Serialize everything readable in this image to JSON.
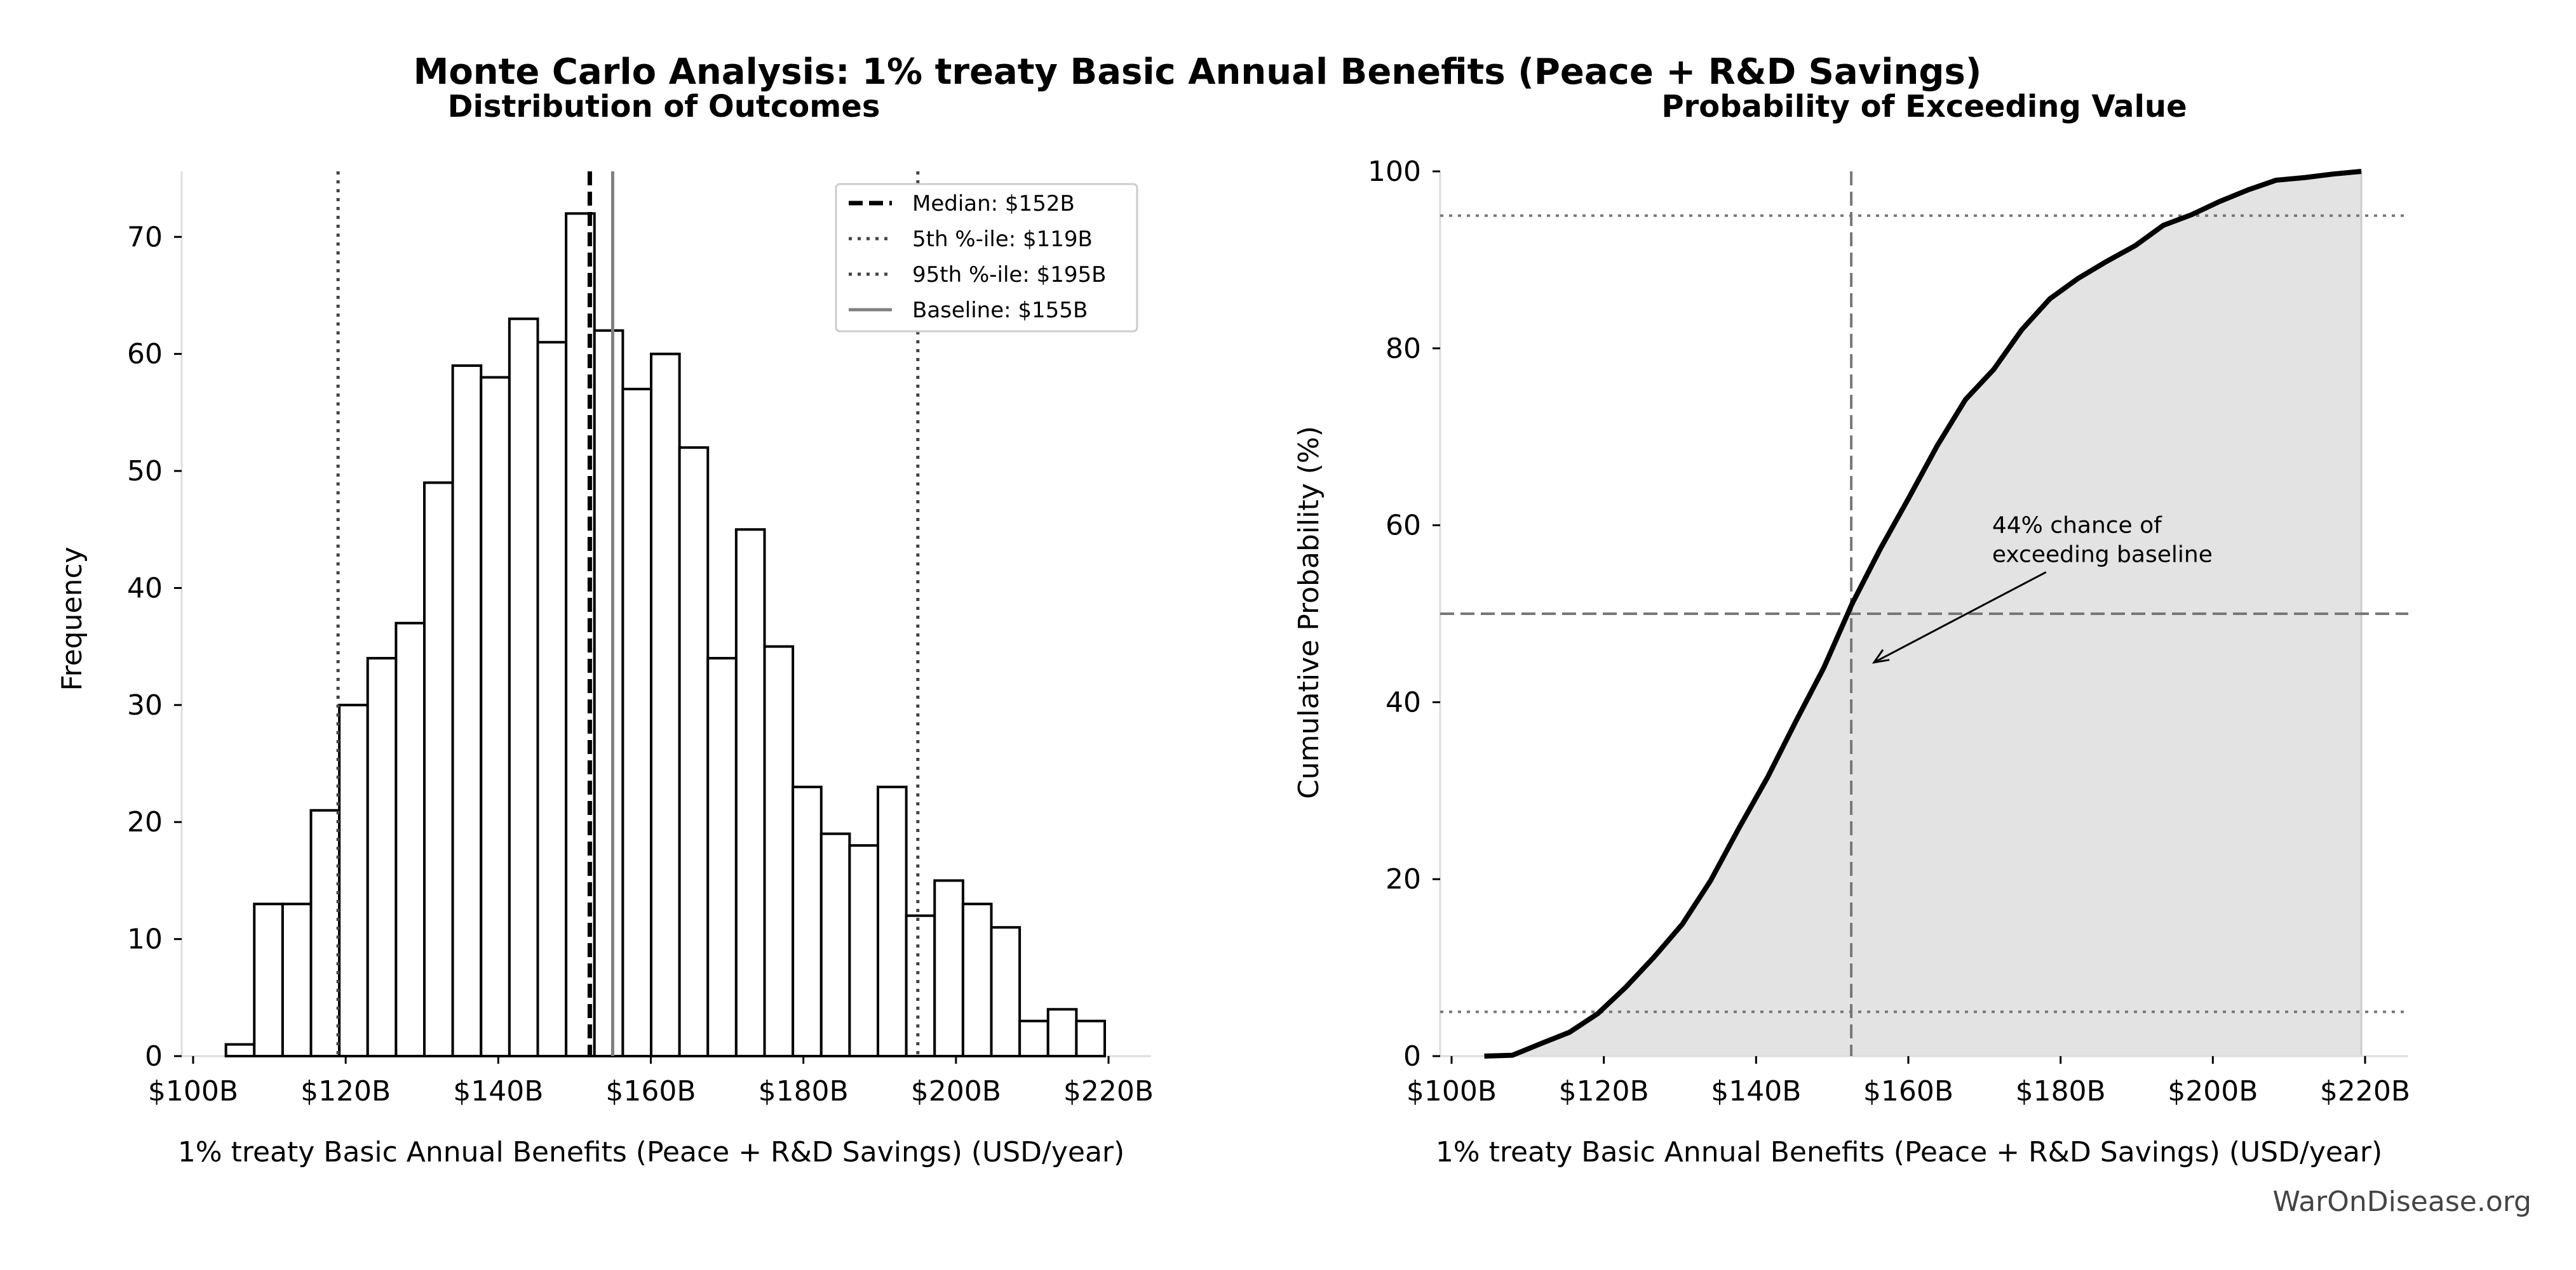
{
  "title": "Monte Carlo Analysis: 1% treaty Basic Annual Benefits (Peace + R&D Savings)",
  "watermark": "WarOnDisease.org",
  "chart_data": [
    {
      "type": "bar",
      "title": "Distribution of Outcomes",
      "xlabel": "1% treaty Basic Annual Benefits (Peace + R&D Savings) (USD/year)",
      "ylabel": "Frequency",
      "xlim": [
        99,
        225
      ],
      "ylim": [
        0,
        75.6
      ],
      "xticks": [
        100,
        120,
        140,
        160,
        180,
        200,
        220
      ],
      "xtick_labels": [
        "$100B",
        "$120B",
        "$140B",
        "$160B",
        "$180B",
        "$200B",
        "$220B"
      ],
      "yticks": [
        0,
        10,
        20,
        30,
        40,
        50,
        60,
        70
      ],
      "ytick_labels": [
        "0",
        "10",
        "20",
        "30",
        "40",
        "50",
        "60",
        "70"
      ],
      "bin_start": 104.3,
      "bin_end": 219.5,
      "values": [
        1,
        13,
        13,
        21,
        30,
        34,
        37,
        49,
        59,
        58,
        63,
        61,
        72,
        62,
        57,
        60,
        52,
        34,
        45,
        35,
        23,
        19,
        18,
        23,
        12,
        15,
        13,
        11,
        3,
        4,
        3
      ],
      "bar_fill": "#ffffff",
      "bar_edge": "#000000",
      "vlines": [
        {
          "x": 152,
          "style": "dashed",
          "color": "#000000",
          "label": "Median: $152B"
        },
        {
          "x": 119,
          "style": "dotted",
          "color": "#444444",
          "label": "5th %-ile: $119B"
        },
        {
          "x": 195,
          "style": "dotted",
          "color": "#444444",
          "label": "95th %-ile: $195B"
        },
        {
          "x": 155,
          "style": "solid",
          "color": "#808080",
          "label": "Baseline: $155B"
        }
      ],
      "legend": "top-right",
      "grid": false
    },
    {
      "type": "area",
      "title": "Probability of Exceeding Value",
      "xlabel": "1% treaty Basic Annual Benefits (Peace + R&D Savings) (USD/year)",
      "ylabel": "Cumulative Probability (%)",
      "xlim": [
        99,
        225
      ],
      "ylim": [
        0,
        100
      ],
      "xticks": [
        100,
        120,
        140,
        160,
        180,
        200,
        220
      ],
      "xtick_labels": [
        "$100B",
        "$120B",
        "$140B",
        "$160B",
        "$180B",
        "$200B",
        "$220B"
      ],
      "yticks": [
        0,
        20,
        40,
        60,
        80,
        100
      ],
      "ytick_labels": [
        "0",
        "20",
        "40",
        "60",
        "80",
        "100"
      ],
      "x": [
        104.3,
        108.0,
        111.7,
        115.5,
        119.2,
        122.9,
        126.6,
        130.3,
        134.0,
        137.7,
        141.5,
        145.2,
        148.9,
        152.6,
        156.3,
        160.0,
        163.8,
        167.5,
        171.2,
        174.9,
        178.6,
        182.3,
        186.0,
        189.8,
        193.5,
        197.2,
        200.9,
        204.6,
        208.3,
        212.1,
        215.8,
        219.5
      ],
      "y": [
        0,
        0.1,
        1.4,
        2.7,
        4.8,
        7.8,
        11.2,
        14.9,
        19.8,
        25.7,
        31.5,
        37.8,
        43.9,
        51.1,
        57.3,
        63.0,
        69.0,
        74.2,
        77.6,
        82.1,
        85.6,
        87.9,
        89.8,
        91.6,
        93.9,
        95.1,
        96.6,
        97.9,
        99.0,
        99.3,
        99.7,
        100
      ],
      "fill_color": "#e3e3e3",
      "line_color": "#000000",
      "vline": {
        "x": 152.5,
        "style": "dashed"
      },
      "hlines": [
        {
          "y": 50,
          "style": "dashed"
        },
        {
          "y": 5,
          "style": "dotted"
        },
        {
          "y": 95,
          "style": "dotted"
        }
      ],
      "annotation": {
        "lines": [
          "44% chance of",
          "exceeding baseline"
        ],
        "arrow_to": {
          "x": 155.5,
          "y": 44.5
        },
        "text_at": {
          "x": 171,
          "y": 57
        }
      },
      "grid": false
    }
  ]
}
